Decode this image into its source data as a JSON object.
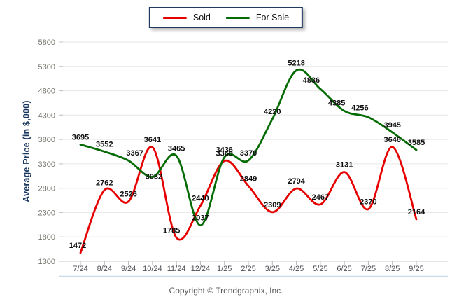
{
  "legend": {
    "items": [
      {
        "label": "Sold",
        "color": "#e60000"
      },
      {
        "label": "For Sale",
        "color": "#056b05"
      }
    ]
  },
  "chart_data": {
    "type": "line",
    "title": "",
    "xlabel": "",
    "ylabel": "Average Price (in $,000)",
    "ylim": [
      1300,
      5800
    ],
    "ytick_step": 500,
    "yticks": [
      1300,
      1800,
      2300,
      2800,
      3300,
      3800,
      4300,
      4800,
      5300,
      5800
    ],
    "grid": true,
    "legend_position": "top-center",
    "categories": [
      "7/24",
      "8/24",
      "9/24",
      "10/24",
      "11/24",
      "12/24",
      "1/25",
      "2/25",
      "3/25",
      "4/25",
      "5/25",
      "6/25",
      "7/25",
      "8/25",
      "9/25"
    ],
    "series": [
      {
        "name": "Sold",
        "color": "#e60000",
        "values": [
          1472,
          2762,
          2526,
          3641,
          1785,
          2440,
          3360,
          2849,
          2309,
          2794,
          2467,
          3131,
          2370,
          3646,
          2164
        ]
      },
      {
        "name": "For Sale",
        "color": "#056b05",
        "values": [
          3695,
          3552,
          3367,
          3032,
          3465,
          2037,
          3436,
          3370,
          4220,
          5218,
          4836,
          4385,
          4256,
          3945,
          3585
        ]
      }
    ]
  },
  "footer": {
    "copyright": "Copyright © Trendgraphix, Inc."
  },
  "colors": {
    "grid": "#e6e6e6",
    "axis_line": "#cccccc",
    "tick_mark": "#b5b5b5",
    "ytick_label": "#76766e",
    "xtick_label": "#4d4d55",
    "data_label": "#0d0d0d",
    "baseline_accent": "#c9d9ec"
  }
}
